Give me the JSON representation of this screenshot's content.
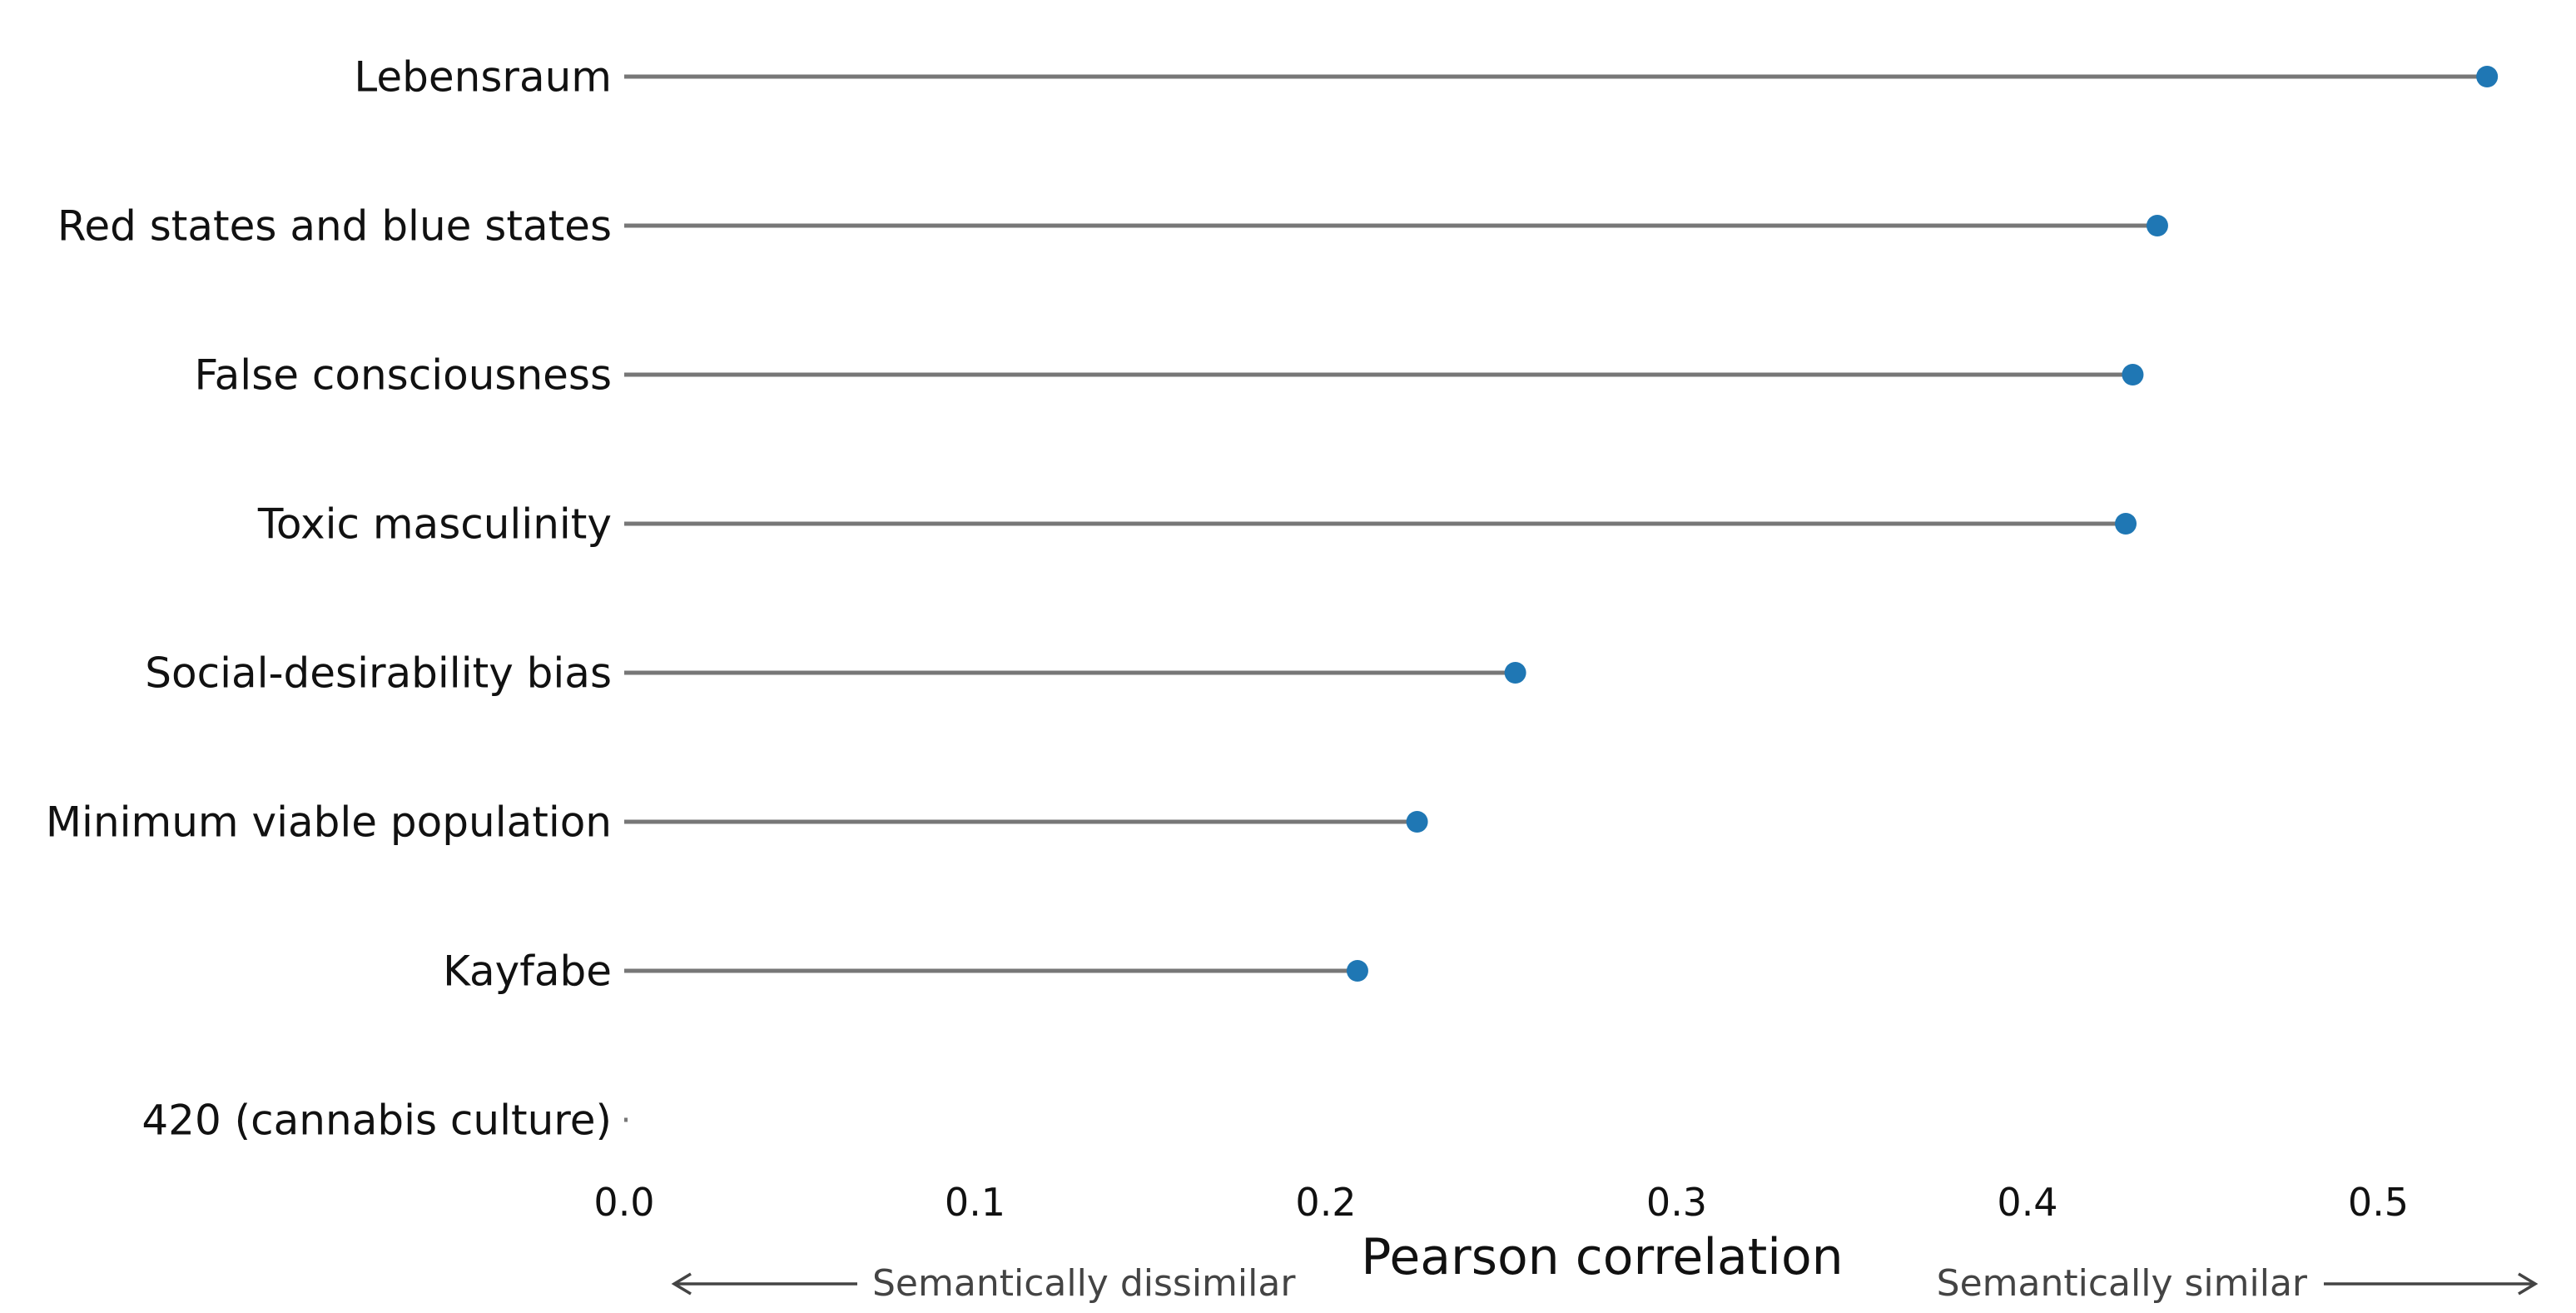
{
  "chart_data": {
    "type": "lollipop",
    "orientation": "horizontal",
    "xlabel": "Pearson correlation",
    "ylabel": "",
    "xlim": [
      0.0,
      0.545
    ],
    "xticks": [
      "0.0",
      "0.1",
      "0.2",
      "0.3",
      "0.4",
      "0.5"
    ],
    "xtick_values": [
      0.0,
      0.1,
      0.2,
      0.3,
      0.4,
      0.5
    ],
    "categories": [
      "Lebensraum",
      "Red states and blue states",
      "False consciousness",
      "Toxic masculinity",
      "Social-desirability bias",
      "Minimum viable population",
      "Kayfabe",
      "420 (cannabis culture)"
    ],
    "values": [
      0.531,
      0.437,
      0.43,
      0.428,
      0.254,
      0.226,
      0.209,
      0.0
    ],
    "annotations": {
      "left": "Semantically dissimilar",
      "right": "Semantically similar"
    },
    "colors": {
      "marker": "#1f77b4",
      "stem": "#777777",
      "text": "#111111",
      "annotation": "#444444"
    },
    "grid": false
  }
}
